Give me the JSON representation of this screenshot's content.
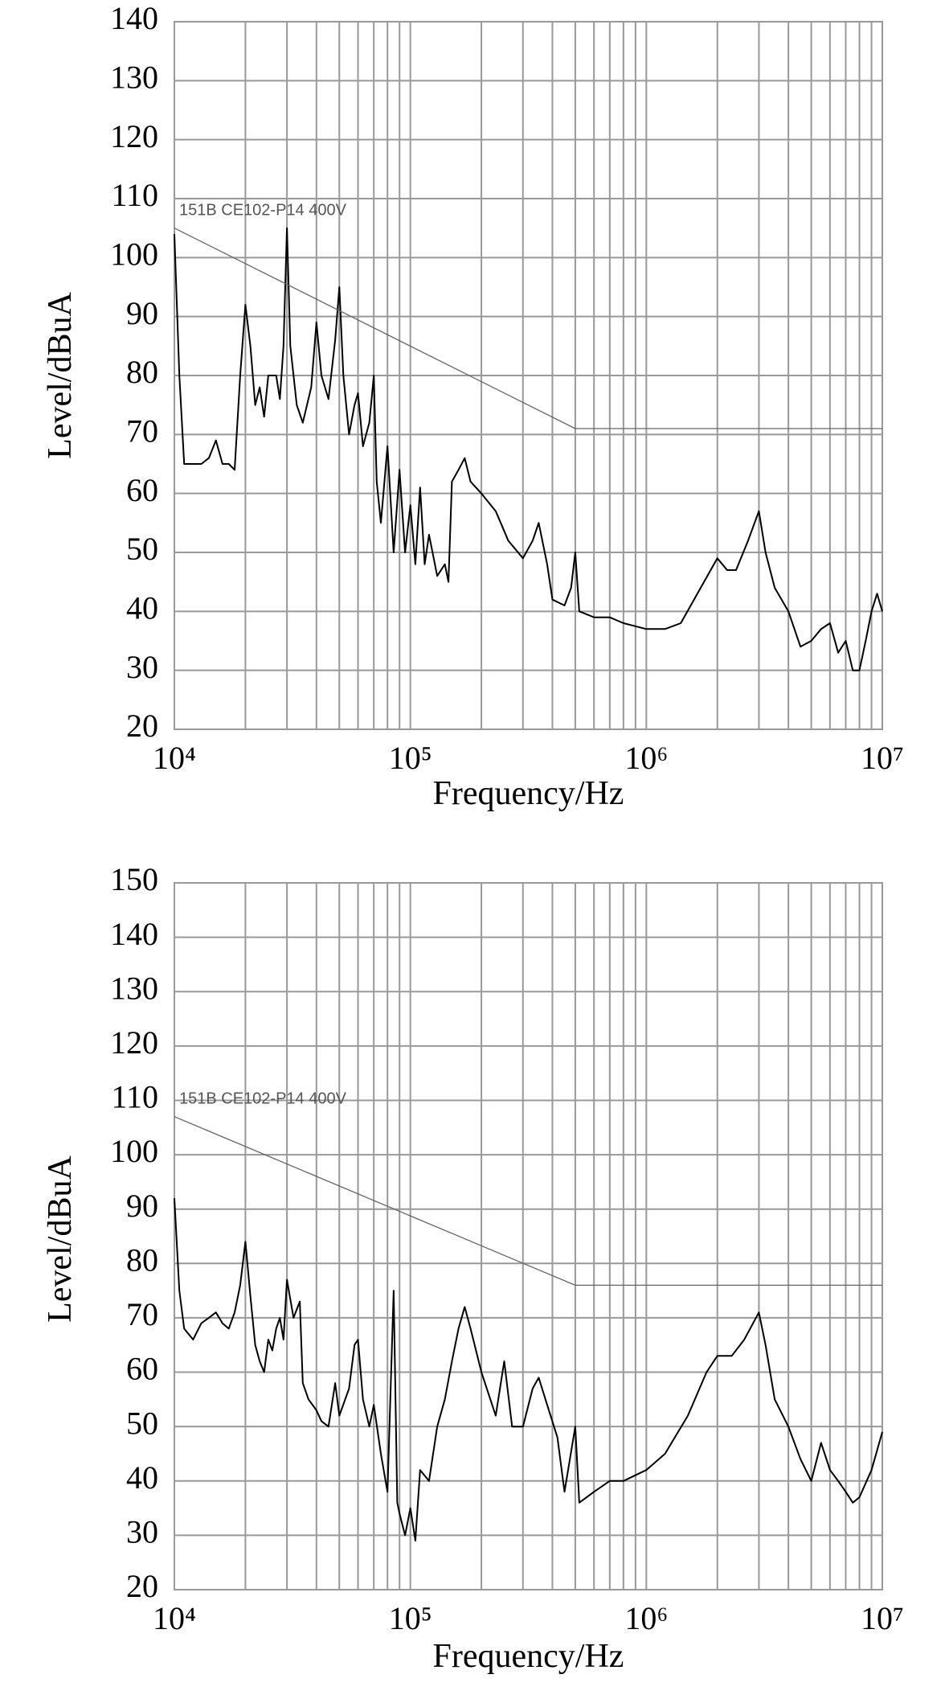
{
  "chart_data": [
    {
      "type": "line",
      "xlabel": "Frequency/Hz",
      "ylabel": "Level/dBuA",
      "log_x": true,
      "grid": true,
      "annotation": "151B CE102-P14 400V",
      "xlim": [
        10000,
        10000000
      ],
      "xticks": [
        {
          "value": 10000,
          "label": "10⁴"
        },
        {
          "value": 100000,
          "label": "10⁵"
        },
        {
          "value": 1000000,
          "label": "10⁶"
        },
        {
          "value": 10000000,
          "label": "10⁷"
        }
      ],
      "xticks_minor": [
        20000,
        30000,
        40000,
        50000,
        60000,
        70000,
        80000,
        90000,
        200000,
        300000,
        400000,
        500000,
        600000,
        700000,
        800000,
        900000,
        2000000,
        3000000,
        4000000,
        5000000,
        6000000,
        7000000,
        8000000,
        9000000
      ],
      "ylim": [
        20,
        140
      ],
      "yticks": [
        20,
        30,
        40,
        50,
        60,
        70,
        80,
        90,
        100,
        110,
        120,
        130,
        140
      ],
      "series": [
        {
          "color": "#000000",
          "width": 2,
          "x": [
            10000,
            10500,
            11000,
            12000,
            13000,
            14000,
            15000,
            16000,
            17000,
            18000,
            19000,
            20000,
            21000,
            22000,
            23000,
            24000,
            25000,
            27000,
            28000,
            29000,
            30000,
            31000,
            33000,
            35000,
            38000,
            40000,
            42000,
            45000,
            48000,
            50000,
            52000,
            55000,
            58000,
            60000,
            63000,
            67000,
            70000,
            72000,
            75000,
            80000,
            85000,
            90000,
            95000,
            100000,
            105000,
            110000,
            115000,
            120000,
            130000,
            140000,
            145000,
            150000,
            160000,
            170000,
            180000,
            200000,
            230000,
            260000,
            300000,
            330000,
            350000,
            380000,
            400000,
            450000,
            480000,
            500000,
            520000,
            600000,
            700000,
            800000,
            1000000,
            1200000,
            1400000,
            1700000,
            2000000,
            2200000,
            2400000,
            2700000,
            3000000,
            3200000,
            3500000,
            4000000,
            4500000,
            5000000,
            5500000,
            6000000,
            6500000,
            7000000,
            7500000,
            8000000,
            8500000,
            9000000,
            9500000,
            10000000
          ],
          "values": [
            104,
            80,
            65,
            65,
            65,
            66,
            69,
            65,
            65,
            64,
            80,
            92,
            85,
            75,
            78,
            73,
            80,
            80,
            76,
            85,
            105,
            85,
            75,
            72,
            78,
            89,
            80,
            76,
            86,
            95,
            80,
            70,
            75,
            77,
            68,
            72,
            80,
            62,
            55,
            68,
            50,
            64,
            50,
            58,
            48,
            61,
            48,
            53,
            46,
            48,
            45,
            62,
            64,
            66,
            62,
            60,
            57,
            52,
            49,
            52,
            55,
            48,
            42,
            41,
            44,
            50,
            40,
            39,
            39,
            38,
            37,
            37,
            38,
            44,
            49,
            47,
            47,
            52,
            57,
            50,
            44,
            40,
            34,
            35,
            37,
            38,
            33,
            35,
            30,
            30,
            35,
            40,
            43,
            40
          ]
        },
        {
          "color": "#666666",
          "width": 1.3,
          "x": [
            10000,
            500000,
            10000000
          ],
          "values": [
            105,
            71,
            71
          ]
        }
      ]
    },
    {
      "type": "line",
      "xlabel": "Frequency/Hz",
      "ylabel": "Level/dBuA",
      "log_x": true,
      "grid": true,
      "annotation": "151B CE102-P14 400V",
      "xlim": [
        10000,
        10000000
      ],
      "xticks": [
        {
          "value": 10000,
          "label": "10⁴"
        },
        {
          "value": 100000,
          "label": "10⁵"
        },
        {
          "value": 1000000,
          "label": "10⁶"
        },
        {
          "value": 10000000,
          "label": "10⁷"
        }
      ],
      "xticks_minor": [
        20000,
        30000,
        40000,
        50000,
        60000,
        70000,
        80000,
        90000,
        200000,
        300000,
        400000,
        500000,
        600000,
        700000,
        800000,
        900000,
        2000000,
        3000000,
        4000000,
        5000000,
        6000000,
        7000000,
        8000000,
        9000000
      ],
      "ylim": [
        20,
        150
      ],
      "yticks": [
        20,
        30,
        40,
        50,
        60,
        70,
        80,
        90,
        100,
        110,
        120,
        130,
        140,
        150
      ],
      "series": [
        {
          "color": "#000000",
          "width": 2,
          "x": [
            10000,
            10500,
            11000,
            12000,
            13000,
            14000,
            15000,
            16000,
            17000,
            18000,
            19000,
            20000,
            21000,
            22000,
            23000,
            24000,
            25000,
            26000,
            27000,
            28000,
            29000,
            30000,
            32000,
            34000,
            35000,
            37000,
            40000,
            42000,
            45000,
            48000,
            50000,
            55000,
            58000,
            60000,
            63000,
            67000,
            70000,
            75000,
            80000,
            85000,
            88000,
            90000,
            95000,
            100000,
            105000,
            110000,
            120000,
            130000,
            140000,
            150000,
            160000,
            170000,
            180000,
            200000,
            230000,
            250000,
            270000,
            300000,
            330000,
            350000,
            380000,
            420000,
            450000,
            500000,
            520000,
            600000,
            700000,
            800000,
            1000000,
            1200000,
            1500000,
            1800000,
            2000000,
            2300000,
            2600000,
            3000000,
            3200000,
            3500000,
            4000000,
            4500000,
            5000000,
            5500000,
            6000000,
            6500000,
            7000000,
            7500000,
            8000000,
            9000000,
            10000000
          ],
          "values": [
            92,
            75,
            68,
            66,
            69,
            70,
            71,
            69,
            68,
            71,
            76,
            84,
            74,
            65,
            62,
            60,
            66,
            64,
            68,
            70,
            66,
            77,
            70,
            73,
            58,
            55,
            53,
            51,
            50,
            58,
            52,
            57,
            65,
            66,
            55,
            50,
            54,
            45,
            38,
            75,
            36,
            34,
            30,
            35,
            29,
            42,
            40,
            50,
            55,
            62,
            68,
            72,
            68,
            60,
            52,
            62,
            50,
            50,
            57,
            59,
            54,
            48,
            38,
            50,
            36,
            38,
            40,
            40,
            42,
            45,
            52,
            60,
            63,
            63,
            66,
            71,
            65,
            55,
            50,
            44,
            40,
            47,
            42,
            40,
            38,
            36,
            37,
            42,
            49
          ]
        },
        {
          "color": "#666666",
          "width": 1.3,
          "x": [
            10000,
            500000,
            10000000
          ],
          "values": [
            107,
            76,
            76
          ]
        }
      ]
    }
  ]
}
